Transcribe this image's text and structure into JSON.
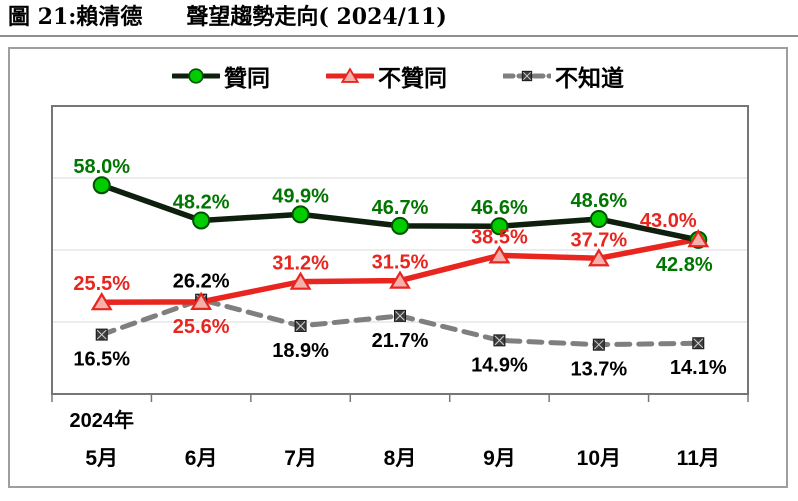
{
  "title": "圖 21:賴清德　　聲望趨勢走向( 2024/11)",
  "chart_data": {
    "type": "line",
    "categories": [
      "5月",
      "6月",
      "7月",
      "8月",
      "9月",
      "10月",
      "11月"
    ],
    "year_label": "2024年",
    "ylim": [
      0,
      80
    ],
    "gridlines": [
      20,
      40,
      60
    ],
    "grid_on": true,
    "legend_position": "top-center",
    "colors": {
      "grid": "#d8d8d8",
      "frame": "#767676",
      "approve_line": "#0e1f0e",
      "approve_marker": "#00cc00",
      "approve_label": "#007600",
      "disapprove": "#e8251f",
      "disapprove_marker_fill": "#f5b0ac",
      "unknown_line": "#7f7f7f",
      "unknown_marker": "#3d3d3d",
      "unknown_label": "#000000"
    },
    "series": [
      {
        "name": "贊同",
        "values": [
          58.0,
          48.2,
          49.9,
          46.7,
          46.6,
          48.6,
          42.8
        ],
        "unit": "%",
        "line_color": "#0e1f0e",
        "dashed": false,
        "marker": {
          "shape": "circle",
          "fill": "#00cc00",
          "stroke": "#005200"
        },
        "label_color": "#007600",
        "label_pos": [
          "above",
          "above",
          "above",
          "above",
          "above",
          "above",
          "below"
        ],
        "label_dx": [
          0,
          0,
          0,
          0,
          0,
          0,
          -14
        ]
      },
      {
        "name": "不贊同",
        "values": [
          25.5,
          25.6,
          31.2,
          31.5,
          38.5,
          37.7,
          43.0
        ],
        "unit": "%",
        "line_color": "#e8251f",
        "dashed": false,
        "marker": {
          "shape": "triangle",
          "fill": "#f5b0ac",
          "stroke": "#e8251f"
        },
        "label_color": "#e8251f",
        "label_pos": [
          "above",
          "below",
          "above",
          "above",
          "above",
          "above",
          "above"
        ],
        "label_dx": [
          0,
          0,
          0,
          0,
          0,
          0,
          -30
        ]
      },
      {
        "name": "不知道",
        "values": [
          16.5,
          26.2,
          18.9,
          21.7,
          14.9,
          13.7,
          14.1
        ],
        "unit": "%",
        "line_color": "#7f7f7f",
        "dashed": true,
        "marker": {
          "shape": "xsquare",
          "fill": "#3d3d3d",
          "stroke": "#1a1a1a"
        },
        "label_color": "#000000",
        "label_pos": [
          "below",
          "above",
          "below",
          "below",
          "below",
          "below",
          "below"
        ],
        "label_dx": [
          0,
          0,
          0,
          0,
          0,
          0,
          0
        ]
      }
    ]
  }
}
